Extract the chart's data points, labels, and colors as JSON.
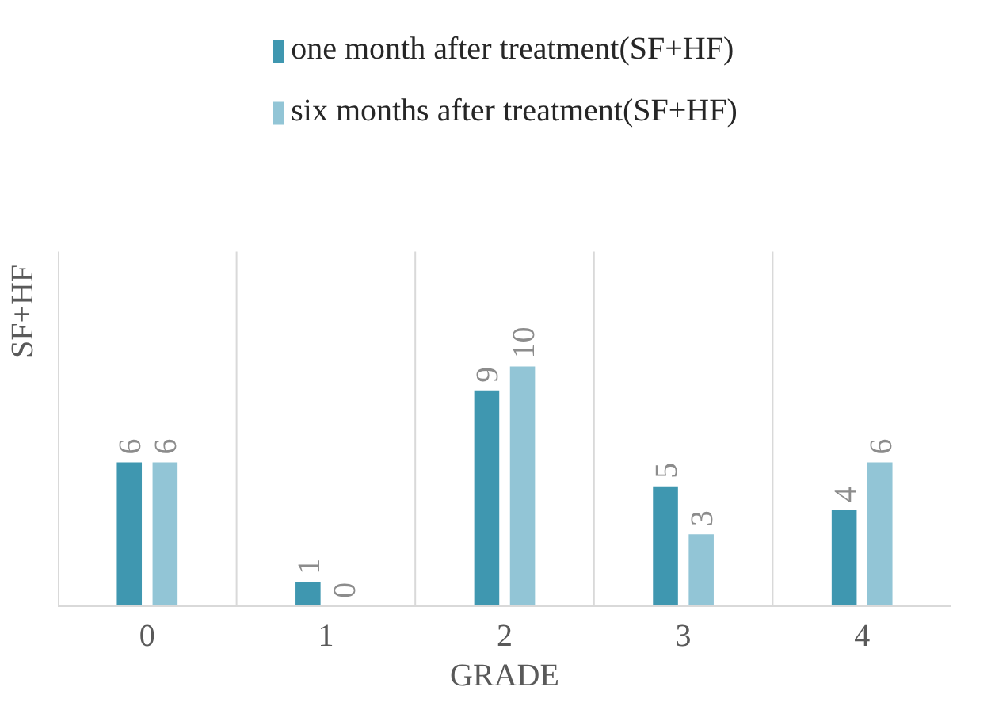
{
  "chart_data": {
    "type": "bar",
    "xlabel": "GRADE",
    "ylabel": "SF+HF",
    "categories": [
      "0",
      "1",
      "2",
      "3",
      "4"
    ],
    "series": [
      {
        "name": "one month after treatment(SF+HF)",
        "color": "#3f97b0",
        "values": [
          6,
          1,
          9,
          5,
          4
        ]
      },
      {
        "name": "six months after treatment(SF+HF)",
        "color": "#92c5d6",
        "values": [
          6,
          0,
          10,
          3,
          6
        ]
      }
    ],
    "data_labels": true,
    "grid": "x",
    "legend": "top"
  }
}
